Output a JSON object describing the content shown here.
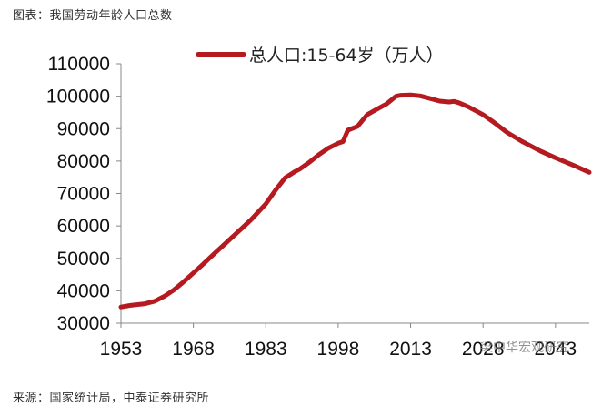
{
  "caption": "图表：我国劳动年龄人口总数",
  "source": "来源：国家统计局，中泰证券研究所",
  "watermark": "梁中华宏观研究",
  "colors": {
    "line": "#b41a1f",
    "axis": "#888888",
    "text": "#111111"
  },
  "chart_data": {
    "type": "line",
    "title": "",
    "legend": "总人口:15-64岁（万人）",
    "legend_position": "top-center",
    "grid": false,
    "xlabel": "",
    "ylabel": "",
    "ylim": [
      30000,
      110000
    ],
    "xlim": [
      1953,
      2050
    ],
    "yticks": [
      "30000",
      "40000",
      "50000",
      "60000",
      "70000",
      "80000",
      "90000",
      "100000",
      "110000"
    ],
    "xticks": [
      "1953",
      "1968",
      "1983",
      "1998",
      "2013",
      "2028",
      "2043"
    ],
    "series": [
      {
        "name": "总人口:15-64岁（万人）",
        "x": [
          1953,
          1955,
          1958,
          1960,
          1962,
          1964,
          1966,
          1968,
          1970,
          1972,
          1975,
          1978,
          1980,
          1983,
          1985,
          1987,
          1989,
          1990,
          1992,
          1994,
          1996,
          1998,
          1999,
          2000,
          2002,
          2004,
          2006,
          2008,
          2010,
          2011,
          2013,
          2015,
          2017,
          2019,
          2021,
          2022,
          2023,
          2025,
          2028,
          2030,
          2033,
          2036,
          2040,
          2043,
          2047,
          2050
        ],
        "values": [
          35000,
          35500,
          36000,
          36800,
          38300,
          40300,
          42800,
          45500,
          48200,
          51000,
          55100,
          59200,
          62000,
          66800,
          71000,
          74800,
          76700,
          77500,
          79600,
          82000,
          84000,
          85500,
          86000,
          89500,
          90700,
          94300,
          96000,
          97600,
          100000,
          100300,
          100400,
          100100,
          99300,
          98500,
          98200,
          98400,
          98000,
          96700,
          94300,
          92200,
          88800,
          86100,
          83000,
          81000,
          78500,
          76500
        ]
      }
    ]
  }
}
